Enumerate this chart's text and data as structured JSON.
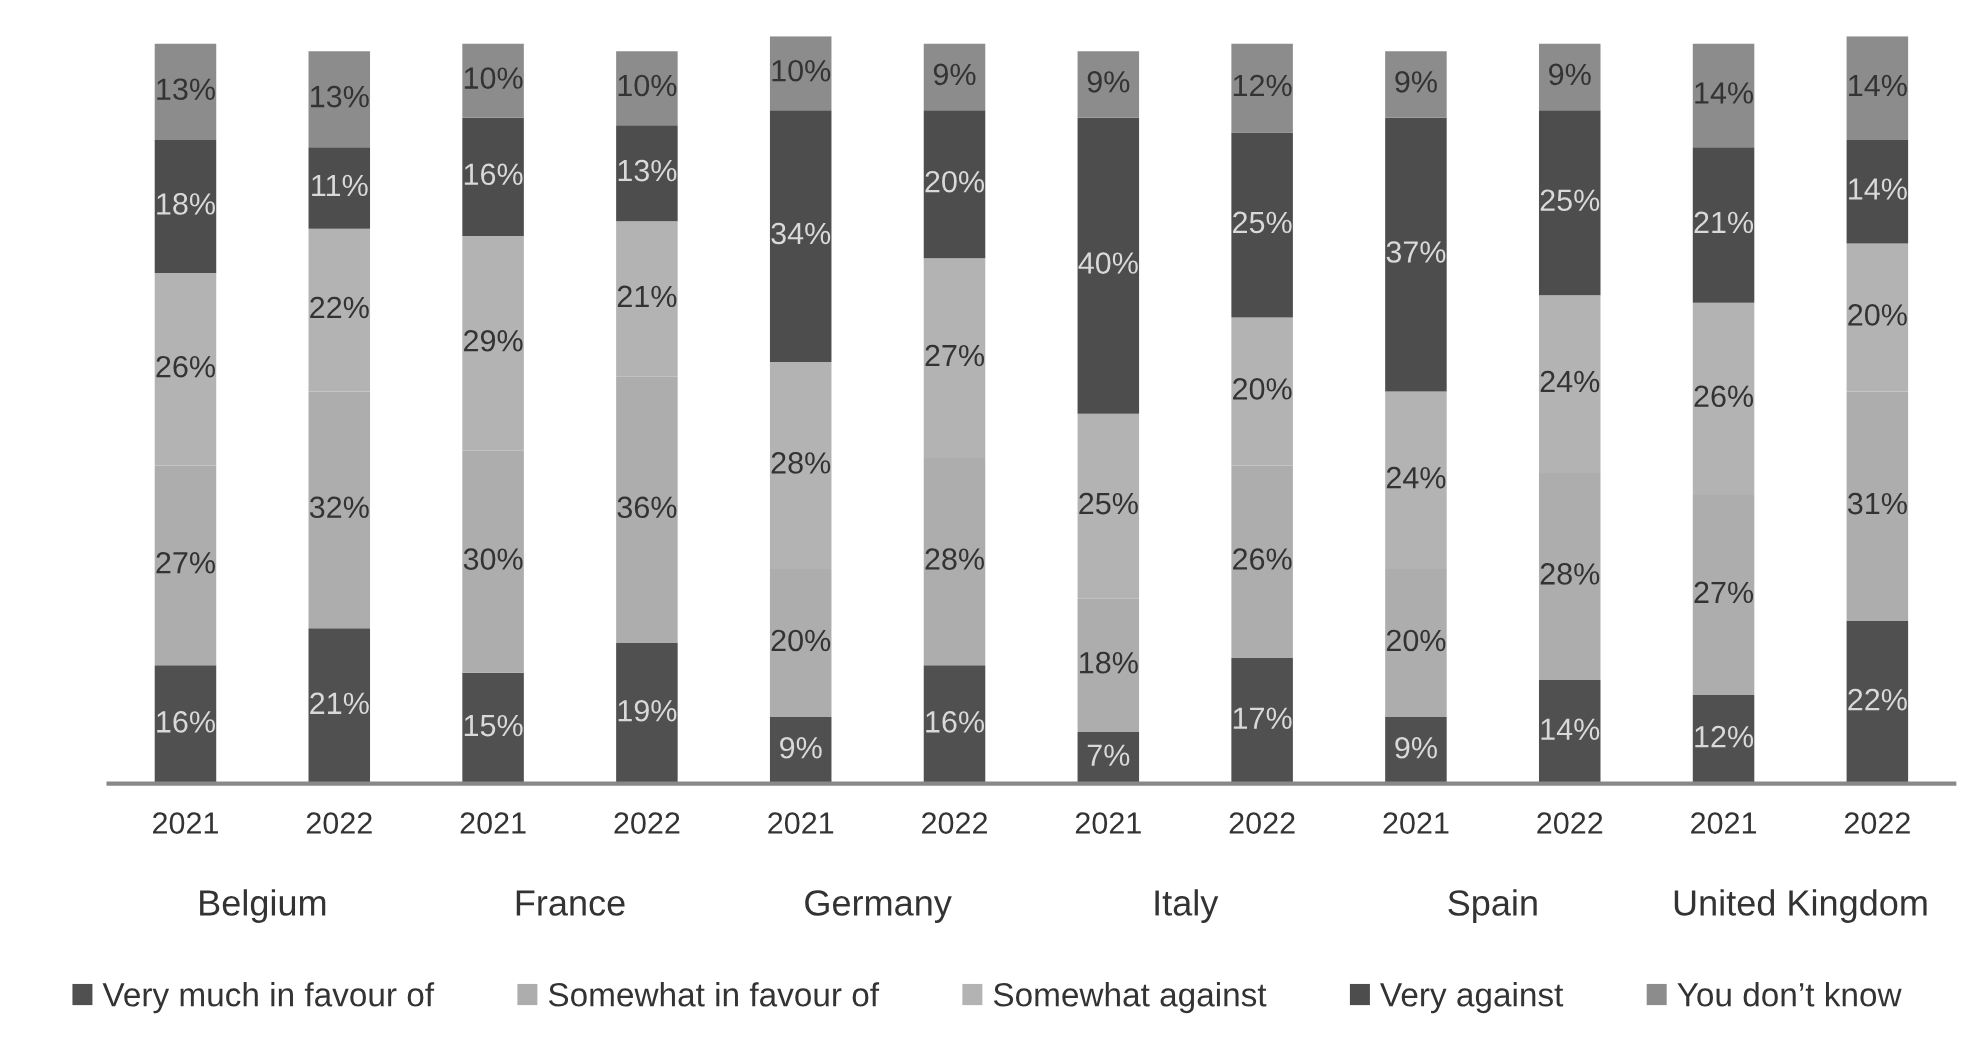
{
  "chart_data": {
    "type": "bar",
    "stacked": true,
    "legend": "bottom",
    "categories": [
      "2021",
      "2022",
      "2021",
      "2022",
      "2021",
      "2022",
      "2021",
      "2022",
      "2021",
      "2022",
      "2021",
      "2022"
    ],
    "annotations": [
      "Belgium",
      "France",
      "Germany",
      "Italy",
      "Spain",
      "United Kingdom"
    ],
    "series": [
      {
        "name": "Very much in favour of",
        "color": "#505050",
        "values": [
          16,
          21,
          15,
          19,
          9,
          16,
          7,
          17,
          9,
          14,
          12,
          22
        ],
        "value_labels": [
          "16%",
          "21%",
          "15%",
          "19%",
          "9%",
          "16%",
          "7%",
          "17%",
          "9%",
          "14%",
          "12%",
          "22%"
        ]
      },
      {
        "name": "Somewhat in favour of",
        "color": "#adadad",
        "values": [
          27,
          32,
          30,
          36,
          20,
          28,
          18,
          26,
          20,
          28,
          27,
          31
        ],
        "value_labels": [
          "27%",
          "32%",
          "30%",
          "36%",
          "20%",
          "28%",
          "18%",
          "26%",
          "20%",
          "28%",
          "27%",
          "31%"
        ]
      },
      {
        "name": "Somewhat against",
        "color": "#b3b3b3",
        "values": [
          26,
          22,
          29,
          21,
          28,
          27,
          25,
          20,
          24,
          24,
          26,
          20
        ],
        "value_labels": [
          "26%",
          "22%",
          "29%",
          "21%",
          "28%",
          "27%",
          "25%",
          "20%",
          "24%",
          "24%",
          "26%",
          "20%"
        ]
      },
      {
        "name": "Very against",
        "color": "#4d4d4d",
        "values": [
          18,
          11,
          16,
          13,
          34,
          20,
          40,
          25,
          37,
          25,
          21,
          14
        ],
        "value_labels": [
          "18%",
          "11%",
          "16%",
          "13%",
          "34%",
          "20%",
          "40%",
          "25%",
          "37%",
          "25%",
          "21%",
          "14%"
        ]
      },
      {
        "name": "You don’t know",
        "color": "#8c8c8c",
        "values": [
          13,
          13,
          10,
          10,
          10,
          9,
          9,
          12,
          9,
          9,
          14,
          14
        ],
        "value_labels": [
          "13%",
          "13%",
          "10%",
          "10%",
          "10%",
          "9%",
          "9%",
          "12%",
          "9%",
          "9%",
          "14%",
          "14%"
        ]
      }
    ]
  }
}
